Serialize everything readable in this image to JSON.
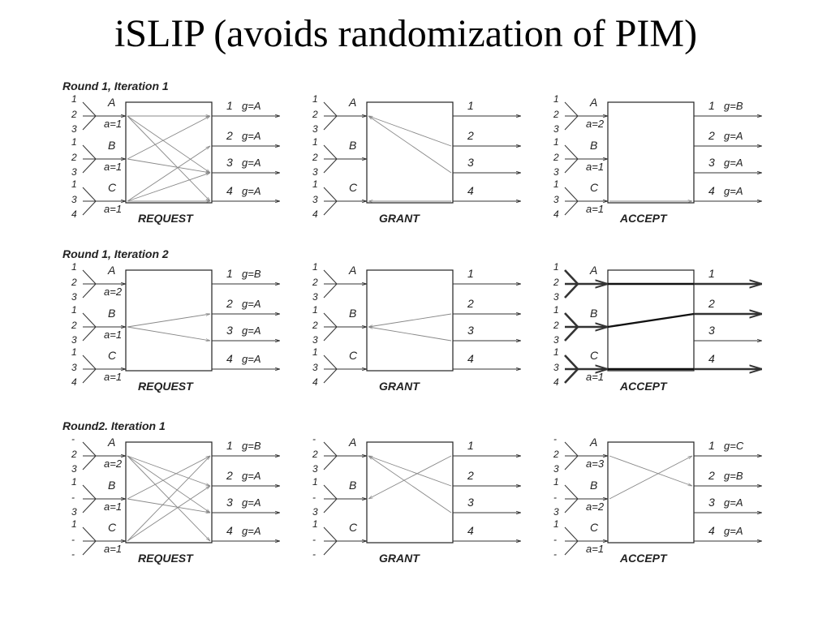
{
  "title": "iSLIP (avoids randomization of PIM)",
  "round_titles": [
    "Round 1, Iteration 1",
    "Round 1, Iteration 2",
    "Round2. Iteration 1"
  ],
  "box_labels": [
    "REQUEST",
    "GRANT",
    "ACCEPT"
  ],
  "inputs": [
    "A",
    "B",
    "C"
  ],
  "outputs": [
    "1",
    "2",
    "3",
    "4"
  ],
  "rounds": [
    {
      "panels": [
        {
          "input_ports": [
            [
              "1",
              "2",
              "3"
            ],
            [
              "1",
              "2",
              "3"
            ],
            [
              "1",
              "3",
              "4"
            ]
          ],
          "accept_ptrs": [
            "a=1",
            "a=1",
            "a=1"
          ],
          "grant_ptrs": [
            "g=A",
            "g=A",
            "g=A",
            "g=A"
          ],
          "edges": [
            [
              "A",
              "1"
            ],
            [
              "A",
              "3"
            ],
            [
              "A",
              "4"
            ],
            [
              "B",
              "1"
            ],
            [
              "B",
              "3"
            ],
            [
              "C",
              "2"
            ],
            [
              "C",
              "3"
            ],
            [
              "C",
              "4"
            ]
          ],
          "bold_inputs": [],
          "bold_outputs": []
        },
        {
          "input_ports": [
            [
              "1",
              "2",
              "3"
            ],
            [
              "1",
              "2",
              "3"
            ],
            [
              "1",
              "3",
              "4"
            ]
          ],
          "accept_ptrs": [
            "",
            "",
            ""
          ],
          "grant_ptrs": [
            "",
            "",
            "",
            ""
          ],
          "edges": [
            [
              "2",
              "A"
            ],
            [
              "3",
              "A"
            ],
            [
              "4",
              "C"
            ]
          ],
          "bold_inputs": [],
          "bold_outputs": []
        },
        {
          "input_ports": [
            [
              "1",
              "2",
              "3"
            ],
            [
              "1",
              "2",
              "3"
            ],
            [
              "1",
              "3",
              "4"
            ]
          ],
          "accept_ptrs": [
            "a=2",
            "a=1",
            "a=1"
          ],
          "grant_ptrs": [
            "g=B",
            "g=A",
            "g=A",
            "g=A"
          ],
          "edges": [
            [
              "C",
              "4"
            ]
          ],
          "bold_inputs": [],
          "bold_outputs": []
        }
      ]
    },
    {
      "panels": [
        {
          "input_ports": [
            [
              "1",
              "2",
              "3"
            ],
            [
              "1",
              "2",
              "3"
            ],
            [
              "1",
              "3",
              "4"
            ]
          ],
          "accept_ptrs": [
            "a=2",
            "a=1",
            "a=1"
          ],
          "grant_ptrs": [
            "g=B",
            "g=A",
            "g=A",
            "g=A"
          ],
          "edges": [
            [
              "B",
              "2"
            ],
            [
              "B",
              "3"
            ]
          ],
          "bold_inputs": [],
          "bold_outputs": []
        },
        {
          "input_ports": [
            [
              "1",
              "2",
              "3"
            ],
            [
              "1",
              "2",
              "3"
            ],
            [
              "1",
              "3",
              "4"
            ]
          ],
          "accept_ptrs": [
            "",
            "",
            ""
          ],
          "grant_ptrs": [
            "",
            "",
            "",
            ""
          ],
          "edges": [
            [
              "2",
              "B"
            ],
            [
              "3",
              "B"
            ]
          ],
          "bold_inputs": [],
          "bold_outputs": []
        },
        {
          "input_ports": [
            [
              "1",
              "2",
              "3"
            ],
            [
              "1",
              "2",
              "3"
            ],
            [
              "1",
              "3",
              "4"
            ]
          ],
          "accept_ptrs": [
            "",
            "",
            "a=1"
          ],
          "grant_ptrs": [
            "",
            "",
            "",
            ""
          ],
          "edges": [],
          "bold_edges": [
            [
              "A",
              "1"
            ],
            [
              "B",
              "2"
            ],
            [
              "C",
              "4"
            ]
          ],
          "bold_inputs": [
            "A",
            "B",
            "C"
          ],
          "bold_outputs": [
            "1",
            "2",
            "4"
          ]
        }
      ]
    },
    {
      "panels": [
        {
          "input_ports": [
            [
              "-",
              "2",
              "3"
            ],
            [
              "1",
              "-",
              "3"
            ],
            [
              "1",
              "-",
              "-"
            ]
          ],
          "accept_ptrs": [
            "a=2",
            "a=1",
            "a=1"
          ],
          "grant_ptrs": [
            "g=B",
            "g=A",
            "g=A",
            "g=A"
          ],
          "edges": [
            [
              "A",
              "2"
            ],
            [
              "A",
              "3"
            ],
            [
              "A",
              "4"
            ],
            [
              "B",
              "1"
            ],
            [
              "B",
              "3"
            ],
            [
              "C",
              "1"
            ],
            [
              "C",
              "2"
            ]
          ],
          "bold_inputs": [],
          "bold_outputs": []
        },
        {
          "input_ports": [
            [
              "-",
              "2",
              "3"
            ],
            [
              "1",
              "-",
              "3"
            ],
            [
              "1",
              "-",
              "-"
            ]
          ],
          "accept_ptrs": [
            "",
            "",
            ""
          ],
          "grant_ptrs": [
            "",
            "",
            "",
            ""
          ],
          "edges": [
            [
              "1",
              "B"
            ],
            [
              "2",
              "A"
            ],
            [
              "3",
              "A"
            ]
          ],
          "bold_inputs": [],
          "bold_outputs": []
        },
        {
          "input_ports": [
            [
              "-",
              "2",
              "3"
            ],
            [
              "1",
              "-",
              "3"
            ],
            [
              "1",
              "-",
              "-"
            ]
          ],
          "accept_ptrs": [
            "a=3",
            "a=2",
            "a=1"
          ],
          "grant_ptrs": [
            "g=C",
            "g=B",
            "g=A",
            "g=A"
          ],
          "edges": [
            [
              "A",
              "2"
            ],
            [
              "B",
              "1"
            ]
          ],
          "bold_inputs": [],
          "bold_outputs": []
        }
      ]
    }
  ]
}
